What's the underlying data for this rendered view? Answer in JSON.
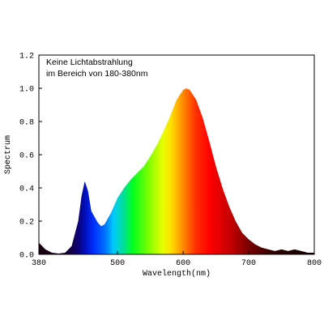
{
  "chart_data": {
    "type": "area",
    "annotation": [
      "Keine Lichtabstrahlung",
      "im Bereich von 180-380nm"
    ],
    "x_label": "Wavelength(nm)",
    "y_label": "Spectrum",
    "xlim": [
      380,
      800
    ],
    "ylim": [
      0,
      1.2
    ],
    "xticks": [
      380,
      500,
      600,
      700,
      800
    ],
    "yticks": [
      {
        "value": 0,
        "label": "0.0"
      },
      0.2,
      0.4,
      0.6,
      0.8,
      {
        "value": 1,
        "label": "1.0"
      },
      1.2
    ],
    "x": [
      380,
      390,
      400,
      410,
      420,
      430,
      440,
      445,
      450,
      455,
      460,
      470,
      475,
      480,
      490,
      500,
      510,
      520,
      530,
      540,
      550,
      560,
      570,
      580,
      590,
      600,
      605,
      610,
      620,
      630,
      640,
      650,
      660,
      670,
      680,
      690,
      700,
      710,
      720,
      730,
      740,
      750,
      760,
      770,
      780,
      790,
      800
    ],
    "values": [
      0.07,
      0.03,
      0.01,
      0.005,
      0.01,
      0.05,
      0.2,
      0.35,
      0.44,
      0.38,
      0.26,
      0.19,
      0.17,
      0.18,
      0.25,
      0.34,
      0.4,
      0.45,
      0.49,
      0.53,
      0.59,
      0.66,
      0.74,
      0.83,
      0.93,
      0.99,
      1.0,
      0.99,
      0.93,
      0.82,
      0.68,
      0.53,
      0.4,
      0.29,
      0.2,
      0.13,
      0.09,
      0.06,
      0.04,
      0.03,
      0.02,
      0.03,
      0.02,
      0.03,
      0.02,
      0.01,
      0.01
    ]
  }
}
